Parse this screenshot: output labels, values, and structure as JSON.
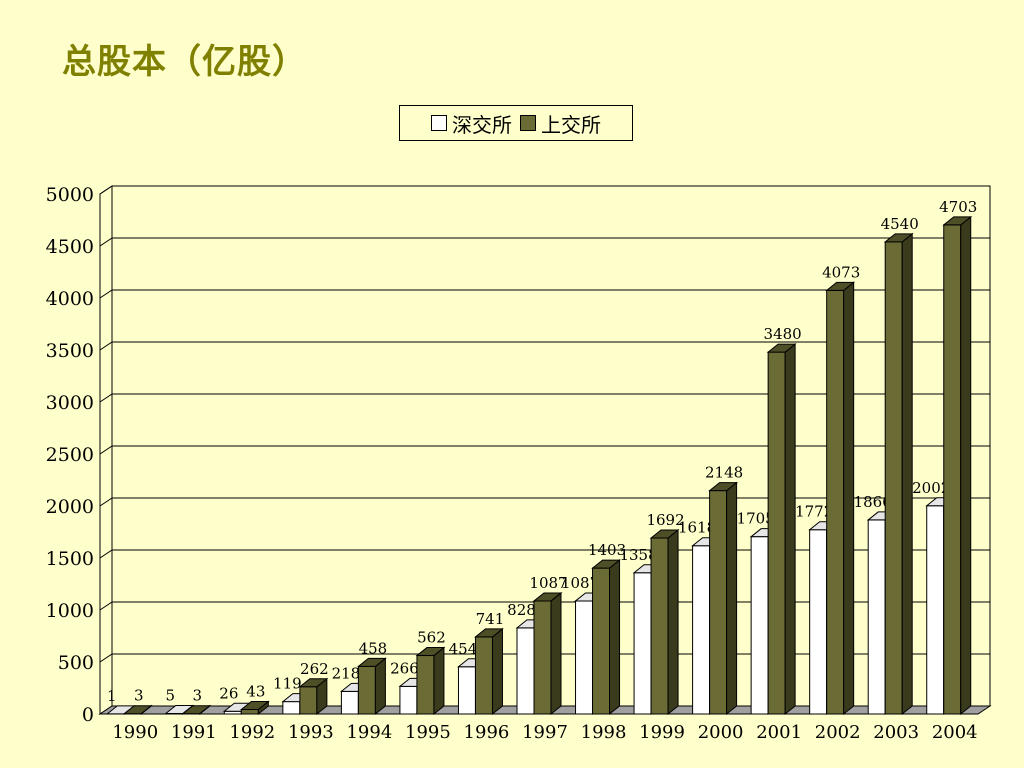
{
  "page": {
    "title": "总股本（亿股）"
  },
  "legend": {
    "items": [
      "深交所",
      "上交所"
    ]
  },
  "colors": {
    "background": "#FFFFCC",
    "title": "#808000",
    "sz_bar": "#FFFFFF",
    "sh_bar": "#6B6B35"
  },
  "chart_data": {
    "type": "bar",
    "title": "总股本（亿股）",
    "xlabel": "",
    "ylabel": "",
    "categories": [
      "1990",
      "1991",
      "1992",
      "1993",
      "1994",
      "1995",
      "1996",
      "1997",
      "1998",
      "1999",
      "2000",
      "2001",
      "2002",
      "2003",
      "2004"
    ],
    "series": [
      {
        "name": "深交所",
        "values": [
          1,
          5,
          26,
          119,
          218,
          266,
          454,
          828,
          1087,
          1358,
          1618,
          1705,
          1772,
          1866,
          2002
        ],
        "labels": [
          "1",
          "5",
          "26",
          "119",
          "218",
          "266",
          "454",
          "828",
          "1087",
          "1358",
          "1618",
          "1705",
          "1772",
          "1866",
          "2002"
        ]
      },
      {
        "name": "上交所",
        "values": [
          3,
          3,
          43,
          262,
          458,
          562,
          741,
          1087,
          1403,
          1692,
          2148,
          3480,
          4073,
          4540,
          4703
        ],
        "labels": [
          "3",
          "3",
          "43",
          "262",
          "458",
          "562",
          "741",
          "1087",
          "1403",
          "1692",
          "2148",
          "3480",
          "4073",
          "4540",
          "4703"
        ]
      }
    ],
    "yticks": [
      "0",
      "500",
      "1000",
      "1500",
      "2000",
      "2500",
      "3000",
      "3500",
      "4000",
      "4500",
      "5000"
    ],
    "ylim": [
      0,
      5000
    ],
    "grid": true,
    "legend_position": "top-center",
    "style": "3d-clustered-column"
  }
}
